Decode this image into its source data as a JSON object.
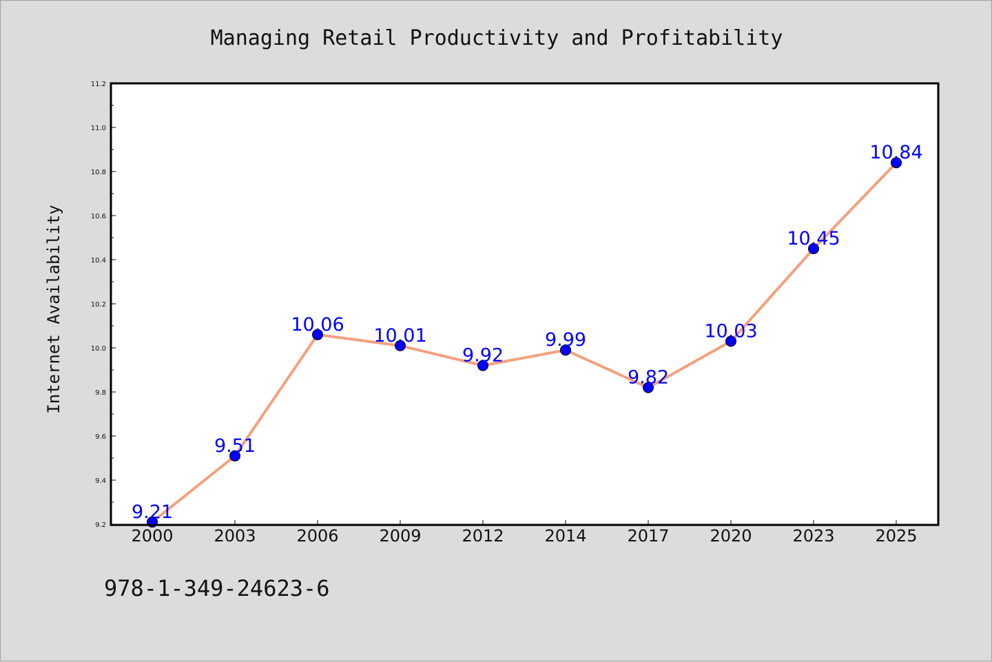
{
  "chart_data": {
    "type": "line",
    "title": "Managing Retail Productivity and Profitability",
    "xlabel": "",
    "ylabel": "Internet Availability",
    "categories": [
      "2000",
      "2003",
      "2006",
      "2009",
      "2012",
      "2014",
      "2017",
      "2020",
      "2023",
      "2025"
    ],
    "series": [
      {
        "values": [
          9.21,
          9.51,
          10.06,
          10.01,
          9.92,
          9.99,
          9.82,
          10.03,
          10.45,
          10.84
        ],
        "data_labels": [
          "9.21",
          "9.51",
          "10.06",
          "10.01",
          "9.92",
          "9.99",
          "9.82",
          "10.03",
          "10.45",
          "10.84"
        ],
        "line_color": "#f4a07e",
        "marker_color": "#0000ff"
      }
    ],
    "ylim": [
      9.2,
      11.2
    ],
    "yticks": [
      "9.2",
      "9.4",
      "9.6",
      "9.8",
      "10.0",
      "10.2",
      "10.4",
      "10.6",
      "10.8",
      "11.0",
      "11.2"
    ],
    "grid": false,
    "legend": "none"
  },
  "footer": {
    "isbn": "978-1-349-24623-6"
  },
  "colors": {
    "background": "#dcdcdc",
    "plot_background": "#ffffff",
    "line": "#f4a07e",
    "marker": "#0000ff",
    "label": "#0000ff"
  }
}
